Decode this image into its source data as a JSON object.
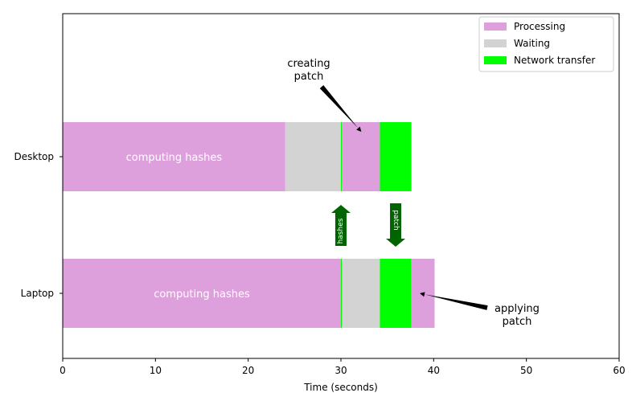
{
  "chart_data": {
    "type": "bar",
    "orientation": "horizontal",
    "stacked": true,
    "xlabel": "Time (seconds)",
    "xlim": [
      0,
      60
    ],
    "xticks": [
      0,
      10,
      20,
      30,
      40,
      50,
      60
    ],
    "categories": [
      "Desktop",
      "Laptop"
    ],
    "legend_position": "top-right",
    "legend": [
      {
        "label": "Processing",
        "color": "#dda0dd"
      },
      {
        "label": "Waiting",
        "color": "#d3d3d3"
      },
      {
        "label": "Network transfer",
        "color": "#00ff00"
      }
    ],
    "segments": [
      {
        "category": "Desktop",
        "kind": "Processing",
        "start": 0,
        "end": 24,
        "label": "computing hashes"
      },
      {
        "category": "Desktop",
        "kind": "Waiting",
        "start": 24,
        "end": 30
      },
      {
        "category": "Desktop",
        "kind": "Network transfer",
        "start": 30,
        "end": 30.1
      },
      {
        "category": "Desktop",
        "kind": "Processing",
        "start": 30.1,
        "end": 34.2
      },
      {
        "category": "Desktop",
        "kind": "Network transfer",
        "start": 34.2,
        "end": 37.6
      },
      {
        "category": "Laptop",
        "kind": "Processing",
        "start": 0,
        "end": 30,
        "label": "computing hashes"
      },
      {
        "category": "Laptop",
        "kind": "Network transfer",
        "start": 30,
        "end": 30.1
      },
      {
        "category": "Laptop",
        "kind": "Waiting",
        "start": 30.1,
        "end": 34.2
      },
      {
        "category": "Laptop",
        "kind": "Network transfer",
        "start": 34.2,
        "end": 37.6
      },
      {
        "category": "Laptop",
        "kind": "Processing",
        "start": 37.6,
        "end": 40.1
      }
    ],
    "annotations": [
      {
        "text": "creating\npatch",
        "points_to": {
          "x": 32.2,
          "category": "Desktop"
        }
      },
      {
        "text": "applying\npatch",
        "points_to": {
          "x": 38.5,
          "category": "Laptop"
        }
      }
    ],
    "transfer_arrows": [
      {
        "label": "hashes",
        "x": 30,
        "direction": "up",
        "color": "#006400"
      },
      {
        "label": "patch",
        "x": 35.9,
        "direction": "down",
        "color": "#006400"
      }
    ]
  }
}
